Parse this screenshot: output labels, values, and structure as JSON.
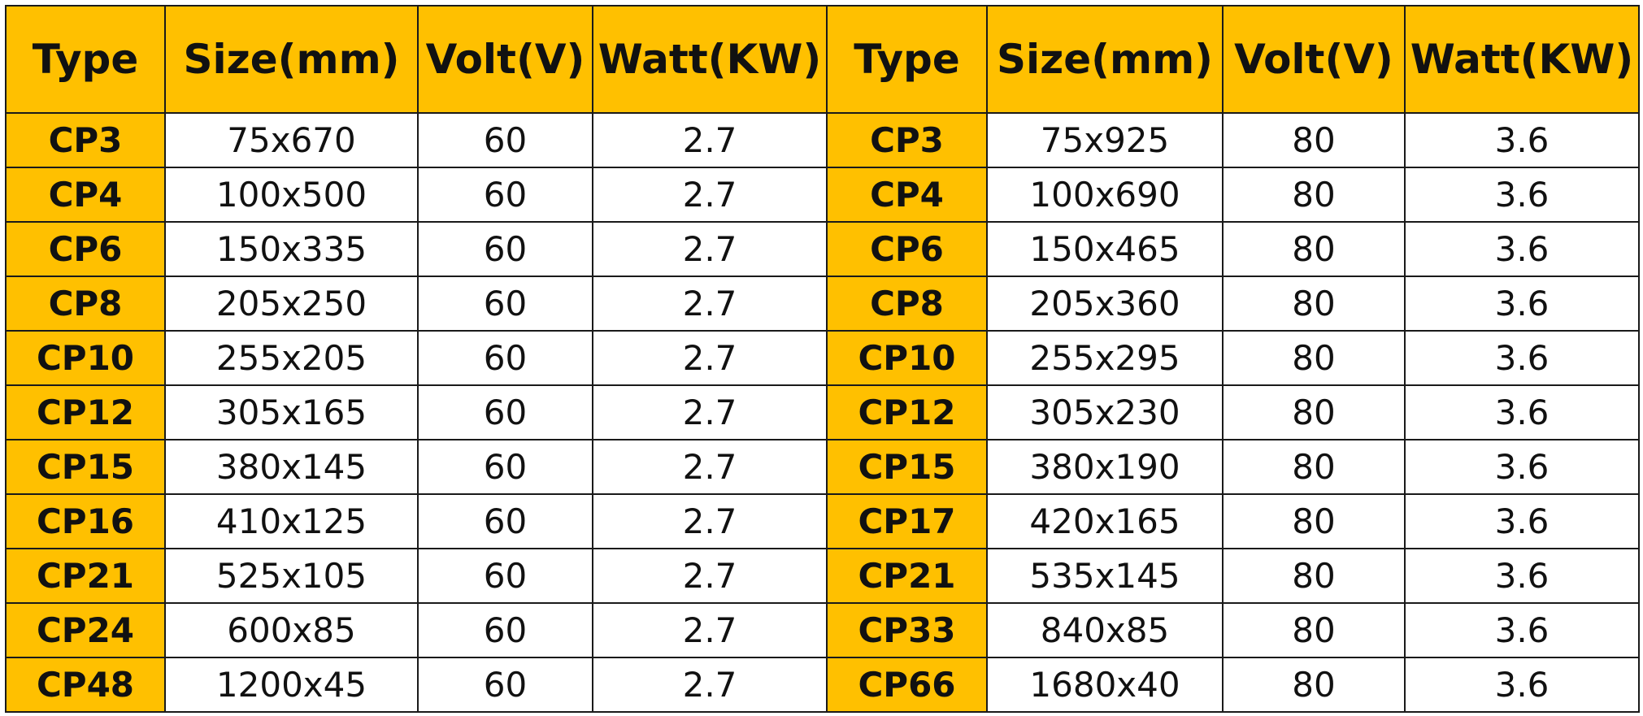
{
  "table": {
    "header": [
      "Type",
      "Size(mm)",
      "Volt(V)",
      "Watt(KW)",
      "Type",
      "Size(mm)",
      "Volt(V)",
      "Watt(KW)"
    ],
    "rows": [
      [
        "CP3",
        "75x670",
        "60",
        "2.7",
        "CP3",
        "75x925",
        "80",
        "3.6"
      ],
      [
        "CP4",
        "100x500",
        "60",
        "2.7",
        "CP4",
        "100x690",
        "80",
        "3.6"
      ],
      [
        "CP6",
        "150x335",
        "60",
        "2.7",
        "CP6",
        "150x465",
        "80",
        "3.6"
      ],
      [
        "CP8",
        "205x250",
        "60",
        "2.7",
        "CP8",
        "205x360",
        "80",
        "3.6"
      ],
      [
        "CP10",
        "255x205",
        "60",
        "2.7",
        "CP10",
        "255x295",
        "80",
        "3.6"
      ],
      [
        "CP12",
        "305x165",
        "60",
        "2.7",
        "CP12",
        "305x230",
        "80",
        "3.6"
      ],
      [
        "CP15",
        "380x145",
        "60",
        "2.7",
        "CP15",
        "380x190",
        "80",
        "3.6"
      ],
      [
        "CP16",
        "410x125",
        "60",
        "2.7",
        "CP17",
        "420x165",
        "80",
        "3.6"
      ],
      [
        "CP21",
        "525x105",
        "60",
        "2.7",
        "CP21",
        "535x145",
        "80",
        "3.6"
      ],
      [
        "CP24",
        "600x85",
        "60",
        "2.7",
        "CP33",
        "840x85",
        "80",
        "3.6"
      ],
      [
        "CP48",
        "1200x45",
        "60",
        "2.7",
        "CP66",
        "1680x40",
        "80",
        "3.6"
      ]
    ]
  }
}
